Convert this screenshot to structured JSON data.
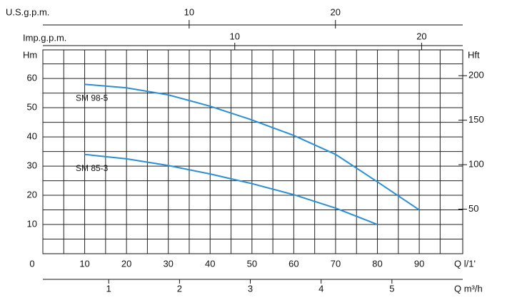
{
  "chart_data": {
    "type": "line",
    "xlabel": "Q l/1'",
    "ylabel": "Hm",
    "y2label": "Hft",
    "x2label": "U.S.g.p.m.",
    "x3label": "Imp.g.p.m.",
    "x4label": "Q m³/h",
    "xlim": [
      0,
      100.4
    ],
    "xticks": [
      0,
      10,
      20,
      30,
      40,
      50,
      60,
      70,
      80,
      90
    ],
    "minor_xticks": [
      5,
      15,
      25,
      35,
      45,
      55,
      65,
      75,
      85,
      95
    ],
    "ylim": [
      0,
      69.8
    ],
    "yticks": [
      10,
      20,
      30,
      40,
      50,
      60
    ],
    "minor_yticks": [
      5,
      15,
      25,
      35,
      45,
      55,
      65
    ],
    "y2lim": [
      0,
      229
    ],
    "y2ticks": [
      50,
      100,
      150,
      200
    ],
    "x2lim": [
      0,
      28.7
    ],
    "x2ticks": [
      10,
      20
    ],
    "x3lim": [
      -0.27,
      22.2
    ],
    "x3ticks": [
      10,
      20
    ],
    "x4lim": [
      0.07,
      6.0
    ],
    "x4ticks": [
      1,
      2,
      3,
      4,
      5
    ],
    "grid": true,
    "series": [
      {
        "name": "SM 98-5",
        "color": "#2a8fd4",
        "x": [
          10,
          20,
          30,
          40,
          50,
          60,
          70,
          80,
          90
        ],
        "values": [
          58,
          56.8,
          54.4,
          50.5,
          45.8,
          40.5,
          34,
          24.6,
          15
        ]
      },
      {
        "name": "SM 85-3",
        "color": "#2a8fd4",
        "x": [
          10,
          20,
          30,
          40,
          50,
          60,
          70,
          80
        ],
        "values": [
          34,
          32.5,
          30.2,
          27.3,
          24,
          20.2,
          15.6,
          10
        ]
      }
    ]
  }
}
